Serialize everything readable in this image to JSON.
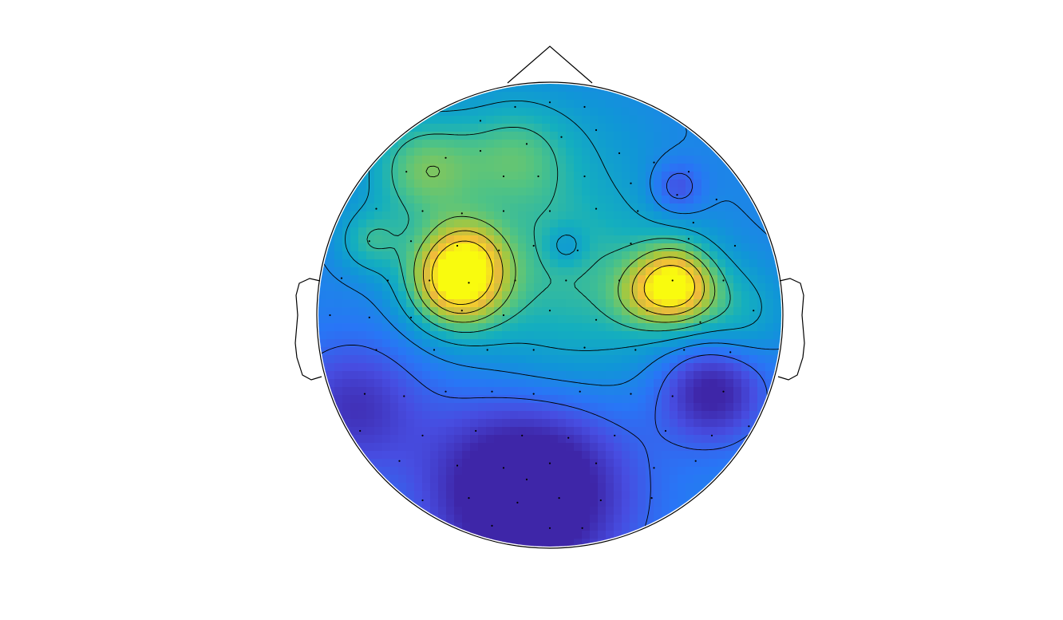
{
  "chart_data": {
    "type": "heatmap",
    "subtype": "eeg-topographic-map",
    "title": "",
    "xlabel": "",
    "ylabel": "",
    "colormap": "parula",
    "colorbar": false,
    "grid": false,
    "contours": true,
    "value_range": [
      0,
      1
    ],
    "head": {
      "nose": "top",
      "ears": "left-right"
    },
    "sources": [
      {
        "x": -0.4,
        "y": 0.16,
        "amp": 0.74,
        "sigma": 0.15
      },
      {
        "x": -0.33,
        "y": 0.28,
        "amp": 0.1,
        "sigma": 0.1
      },
      {
        "x": 0.54,
        "y": 0.13,
        "amp": 0.6,
        "sigma": 0.12
      },
      {
        "x": 0.38,
        "y": 0.08,
        "amp": 0.12,
        "sigma": 0.1
      },
      {
        "x": -0.55,
        "y": 0.63,
        "amp": 0.34,
        "sigma": 0.17
      },
      {
        "x": -0.15,
        "y": 0.7,
        "amp": 0.26,
        "sigma": 0.18
      },
      {
        "x": -0.78,
        "y": 0.32,
        "amp": 0.22,
        "sigma": 0.1
      },
      {
        "x": 0.8,
        "y": 0.0,
        "amp": 0.18,
        "sigma": 0.15
      },
      {
        "x": 0.0,
        "y": 0.3,
        "amp": 0.15,
        "sigma": 0.28
      },
      {
        "x": 0.3,
        "y": 0.1,
        "amp": 0.15,
        "sigma": 0.3
      },
      {
        "x": -0.08,
        "y": -0.25,
        "amp": 0.1,
        "sigma": 0.25
      },
      {
        "x": 0.55,
        "y": 0.55,
        "amp": -0.2,
        "sigma": 0.08
      },
      {
        "x": 0.07,
        "y": 0.3,
        "amp": -0.15,
        "sigma": 0.06
      },
      {
        "x": 0.7,
        "y": -0.32,
        "amp": -0.35,
        "sigma": 0.16
      },
      {
        "x": -0.1,
        "y": -0.75,
        "amp": -0.5,
        "sigma": 0.3
      },
      {
        "x": -0.85,
        "y": -0.4,
        "amp": -0.25,
        "sigma": 0.2
      },
      {
        "x": 0.25,
        "y": 0.8,
        "amp": 0.05,
        "sigma": 0.2
      }
    ],
    "base_level": 0.3,
    "contour_levels": [
      0.2,
      0.32,
      0.44,
      0.56,
      0.68,
      0.8,
      0.92
    ],
    "electrodes": [
      [
        -0.15,
        0.9
      ],
      [
        0.0,
        0.92
      ],
      [
        0.15,
        0.9
      ],
      [
        -0.3,
        0.84
      ],
      [
        0.2,
        0.8
      ],
      [
        0.05,
        0.77
      ],
      [
        -0.1,
        0.74
      ],
      [
        -0.3,
        0.71
      ],
      [
        -0.45,
        0.68
      ],
      [
        -0.62,
        0.62
      ],
      [
        0.3,
        0.7
      ],
      [
        0.45,
        0.66
      ],
      [
        0.6,
        0.62
      ],
      [
        -0.2,
        0.6
      ],
      [
        -0.05,
        0.6
      ],
      [
        0.15,
        0.6
      ],
      [
        0.35,
        0.57
      ],
      [
        0.55,
        0.52
      ],
      [
        0.72,
        0.5
      ],
      [
        -0.75,
        0.46
      ],
      [
        -0.55,
        0.45
      ],
      [
        -0.38,
        0.44
      ],
      [
        -0.2,
        0.45
      ],
      [
        0.0,
        0.45
      ],
      [
        0.2,
        0.46
      ],
      [
        0.38,
        0.45
      ],
      [
        0.62,
        0.4
      ],
      [
        -0.78,
        0.32
      ],
      [
        -0.6,
        0.32
      ],
      [
        -0.4,
        0.3
      ],
      [
        -0.22,
        0.28
      ],
      [
        -0.07,
        0.3
      ],
      [
        0.12,
        0.28
      ],
      [
        0.35,
        0.31
      ],
      [
        0.6,
        0.33
      ],
      [
        0.8,
        0.3
      ],
      [
        -0.9,
        0.16
      ],
      [
        -0.7,
        0.15
      ],
      [
        -0.52,
        0.15
      ],
      [
        -0.35,
        0.14
      ],
      [
        -0.15,
        0.15
      ],
      [
        0.07,
        0.15
      ],
      [
        0.3,
        0.15
      ],
      [
        0.53,
        0.15
      ],
      [
        0.75,
        0.15
      ],
      [
        -0.95,
        0.0
      ],
      [
        -0.78,
        -0.01
      ],
      [
        -0.6,
        -0.01
      ],
      [
        -0.38,
        0.02
      ],
      [
        -0.2,
        0.0
      ],
      [
        0.0,
        0.02
      ],
      [
        0.2,
        -0.02
      ],
      [
        0.42,
        0.02
      ],
      [
        0.65,
        -0.03
      ],
      [
        0.88,
        0.02
      ],
      [
        -0.75,
        -0.15
      ],
      [
        -0.5,
        -0.15
      ],
      [
        -0.27,
        -0.15
      ],
      [
        -0.07,
        -0.15
      ],
      [
        0.15,
        -0.14
      ],
      [
        0.37,
        -0.15
      ],
      [
        0.58,
        -0.15
      ],
      [
        0.78,
        -0.16
      ],
      [
        -0.8,
        -0.34
      ],
      [
        -0.63,
        -0.35
      ],
      [
        -0.45,
        -0.33
      ],
      [
        -0.25,
        -0.33
      ],
      [
        -0.07,
        -0.34
      ],
      [
        0.13,
        -0.33
      ],
      [
        0.35,
        -0.34
      ],
      [
        0.53,
        -0.35
      ],
      [
        0.75,
        -0.33
      ],
      [
        -0.82,
        -0.5
      ],
      [
        -0.55,
        -0.52
      ],
      [
        -0.32,
        -0.5
      ],
      [
        -0.12,
        -0.52
      ],
      [
        0.08,
        -0.53
      ],
      [
        0.28,
        -0.52
      ],
      [
        0.5,
        -0.5
      ],
      [
        0.7,
        -0.52
      ],
      [
        0.86,
        -0.48
      ],
      [
        -0.65,
        -0.63
      ],
      [
        -0.4,
        -0.65
      ],
      [
        -0.2,
        -0.66
      ],
      [
        0.0,
        -0.64
      ],
      [
        0.2,
        -0.64
      ],
      [
        0.45,
        -0.66
      ],
      [
        0.63,
        -0.63
      ],
      [
        -0.55,
        -0.8
      ],
      [
        -0.35,
        -0.79
      ],
      [
        -0.14,
        -0.81
      ],
      [
        0.04,
        -0.79
      ],
      [
        0.22,
        -0.8
      ],
      [
        0.44,
        -0.79
      ],
      [
        -0.25,
        -0.91
      ],
      [
        0.0,
        -0.92
      ],
      [
        0.14,
        -0.92
      ],
      [
        -0.1,
        -0.71
      ]
    ]
  }
}
